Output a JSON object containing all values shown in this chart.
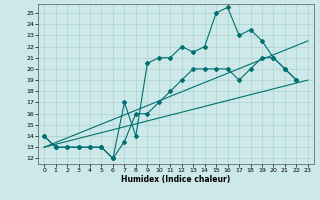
{
  "xlabel": "Humidex (Indice chaleur)",
  "xlim": [
    -0.5,
    23.5
  ],
  "ylim": [
    11.5,
    25.8
  ],
  "xticks": [
    0,
    1,
    2,
    3,
    4,
    5,
    6,
    7,
    8,
    9,
    10,
    11,
    12,
    13,
    14,
    15,
    16,
    17,
    18,
    19,
    20,
    21,
    22,
    23
  ],
  "yticks": [
    12,
    13,
    14,
    15,
    16,
    17,
    18,
    19,
    20,
    21,
    22,
    23,
    24,
    25
  ],
  "background_color": "#cde8e8",
  "grid_color": "#b0d0d0",
  "line_color": "#007070",
  "line1_y": [
    14,
    13,
    13,
    13,
    13,
    13,
    12,
    17,
    14,
    20.5,
    21,
    21,
    22,
    21.5,
    22,
    25,
    25.5,
    23,
    23.5,
    22.5,
    21,
    20,
    19
  ],
  "line2_y": [
    14,
    13,
    13,
    13,
    13,
    13,
    12,
    13.5,
    16,
    16,
    17,
    18,
    19,
    20,
    20,
    20,
    20,
    19,
    20,
    21,
    21,
    20,
    19
  ],
  "trend1_x": [
    0,
    23
  ],
  "trend1_y": [
    13,
    22.5
  ],
  "trend2_x": [
    0,
    23
  ],
  "trend2_y": [
    13,
    19
  ]
}
